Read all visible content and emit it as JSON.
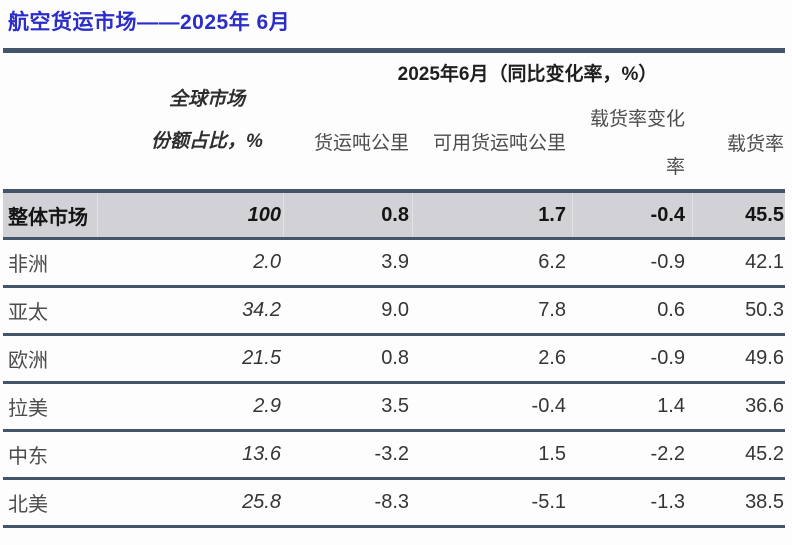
{
  "page": {
    "title": "航空货运市场——2025年 6月"
  },
  "colors": {
    "title_accent": "#2B2DC9",
    "rule": "#44546A",
    "highlight_row_bg": "#D2D1D5"
  },
  "table": {
    "headers": {
      "period": "2025年6月（同比变化率，%）",
      "share_line1": "全球市场",
      "share_line2": "份额占比，%",
      "ftk": "货运吨公里",
      "aftk": "可用货运吨公里",
      "lf_change_line1": "载货率变化",
      "lf_change_line2": "率",
      "lf": "载货率"
    },
    "rows": [
      {
        "label": "整体市场",
        "values": [
          "100",
          "0.8",
          "1.7",
          "-0.4",
          "45.5"
        ]
      },
      {
        "label": "非洲",
        "values": [
          "2.0",
          "3.9",
          "6.2",
          "-0.9",
          "42.1"
        ]
      },
      {
        "label": "亚太",
        "values": [
          "34.2",
          "9.0",
          "7.8",
          "0.6",
          "50.3"
        ]
      },
      {
        "label": "欧洲",
        "values": [
          "21.5",
          "0.8",
          "2.6",
          "-0.9",
          "49.6"
        ]
      },
      {
        "label": "拉美",
        "values": [
          "2.9",
          "3.5",
          "-0.4",
          "1.4",
          "36.6"
        ]
      },
      {
        "label": "中东",
        "values": [
          "13.6",
          "-3.2",
          "1.5",
          "-2.2",
          "45.2"
        ]
      },
      {
        "label": "北美",
        "values": [
          "25.8",
          "-8.3",
          "-5.1",
          "-1.3",
          "38.5"
        ]
      }
    ]
  }
}
